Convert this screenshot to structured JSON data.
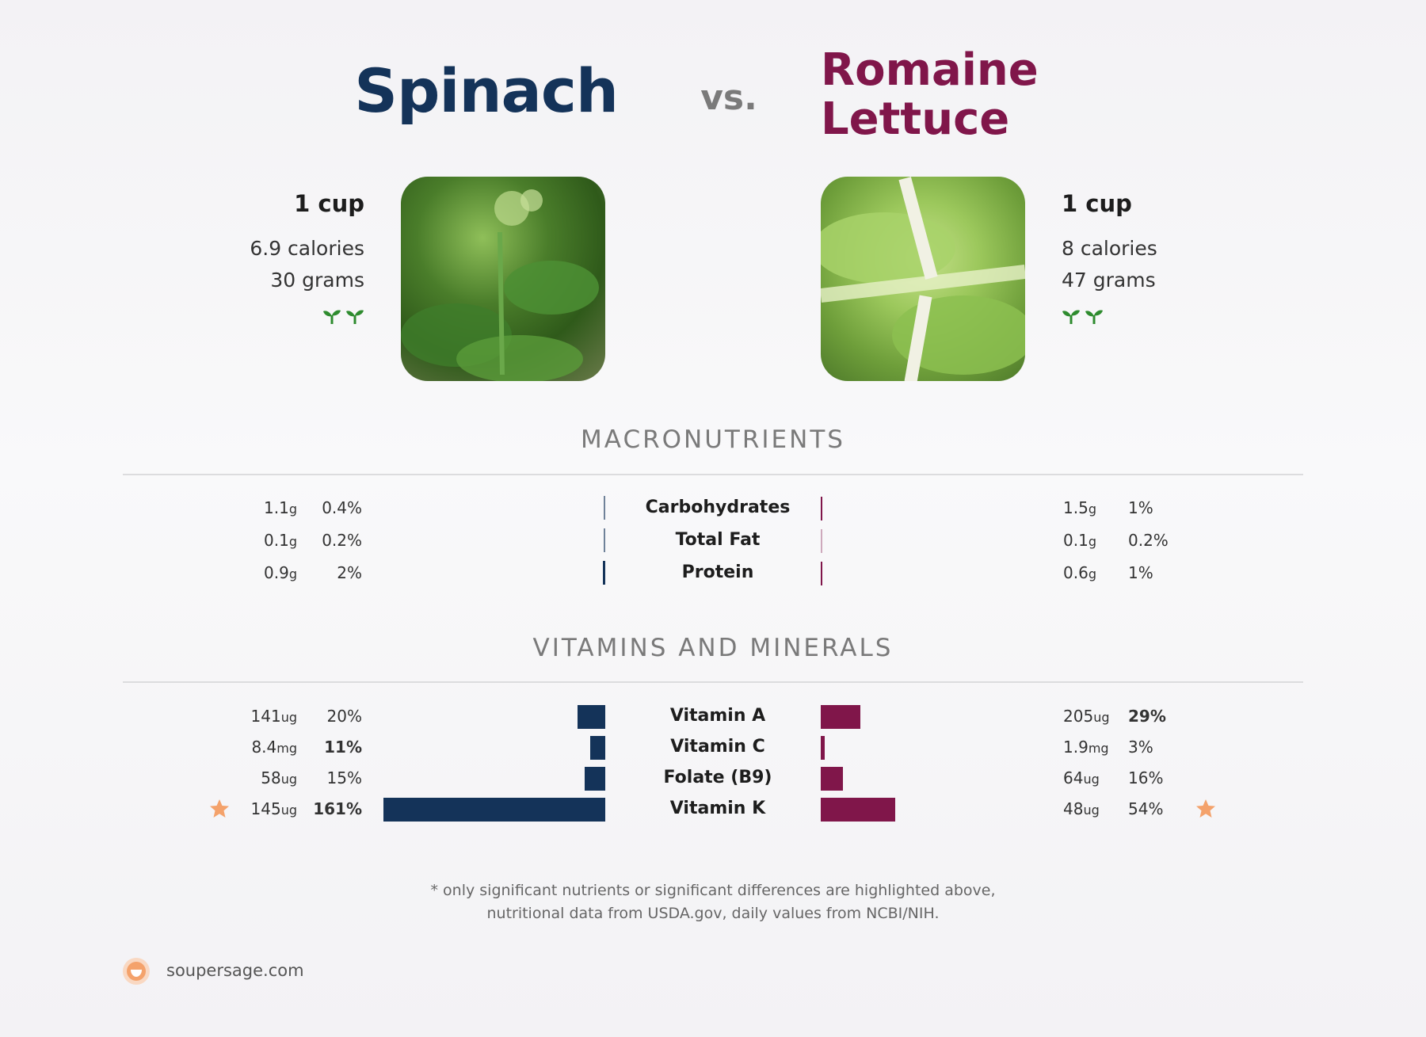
{
  "header": {
    "left_food": "Spinach",
    "vs": "vs.",
    "right_food": "Romaine Lettuce",
    "left_color": "#143359",
    "right_color": "#80164a"
  },
  "left_info": {
    "serving": "1 cup",
    "calories": "6.9 calories",
    "grams": "30 grams",
    "icons": [
      "sprout-icon",
      "sprout-icon"
    ]
  },
  "right_info": {
    "serving": "1 cup",
    "calories": "8 calories",
    "grams": "47 grams",
    "icons": [
      "sprout-icon",
      "sprout-icon"
    ]
  },
  "macros": {
    "title": "MACRONUTRIENTS",
    "rows": [
      {
        "label": "Carbohydrates",
        "left_amount": "1.1",
        "left_unit": "g",
        "left_pct": "0.4%",
        "right_amount": "1.5",
        "right_unit": "g",
        "right_pct": "1%"
      },
      {
        "label": "Total Fat",
        "left_amount": "0.1",
        "left_unit": "g",
        "left_pct": "0.2%",
        "right_amount": "0.1",
        "right_unit": "g",
        "right_pct": "0.2%"
      },
      {
        "label": "Protein",
        "left_amount": "0.9",
        "left_unit": "g",
        "left_pct": "2%",
        "right_amount": "0.6",
        "right_unit": "g",
        "right_pct": "1%"
      }
    ]
  },
  "vitamins": {
    "title": "VITAMINS AND MINERALS",
    "rows": [
      {
        "label": "Vitamin A",
        "left_amount": "141",
        "left_unit": "ug",
        "left_pct": "20%",
        "right_amount": "205",
        "right_unit": "ug",
        "right_pct": "29%"
      },
      {
        "label": "Vitamin C",
        "left_amount": "8.4",
        "left_unit": "mg",
        "left_pct": "11%",
        "right_amount": "1.9",
        "right_unit": "mg",
        "right_pct": "3%"
      },
      {
        "label": "Folate (B9)",
        "left_amount": "58",
        "left_unit": "ug",
        "left_pct": "15%",
        "right_amount": "64",
        "right_unit": "ug",
        "right_pct": "16%"
      },
      {
        "label": "Vitamin K",
        "left_amount": "145",
        "left_unit": "ug",
        "left_pct": "161%",
        "right_amount": "48",
        "right_unit": "ug",
        "right_pct": "54%"
      }
    ]
  },
  "chart_data": {
    "type": "bar",
    "categories": [
      "Carbohydrates",
      "Total Fat",
      "Protein",
      "Vitamin A",
      "Vitamin C",
      "Folate (B9)",
      "Vitamin K"
    ],
    "series": [
      {
        "name": "Spinach",
        "values": [
          0.4,
          0.2,
          2,
          20,
          11,
          15,
          161
        ]
      },
      {
        "name": "Romaine Lettuce",
        "values": [
          1,
          0.2,
          1,
          29,
          3,
          16,
          54
        ]
      }
    ]
  },
  "highlights": {
    "left_bold_pcts": [
      "11%",
      "161%"
    ],
    "right_bold_pcts": [
      "29%"
    ],
    "star_icon_rows": [
      "Vitamin K"
    ],
    "star_color": "#f4a26b"
  },
  "footer": {
    "note_line1": "* only significant nutrients or significant differences are highlighted above,",
    "note_line2": "nutritional data from USDA.gov, daily values from NCBI/NIH.",
    "brand": "soupersage.com"
  }
}
